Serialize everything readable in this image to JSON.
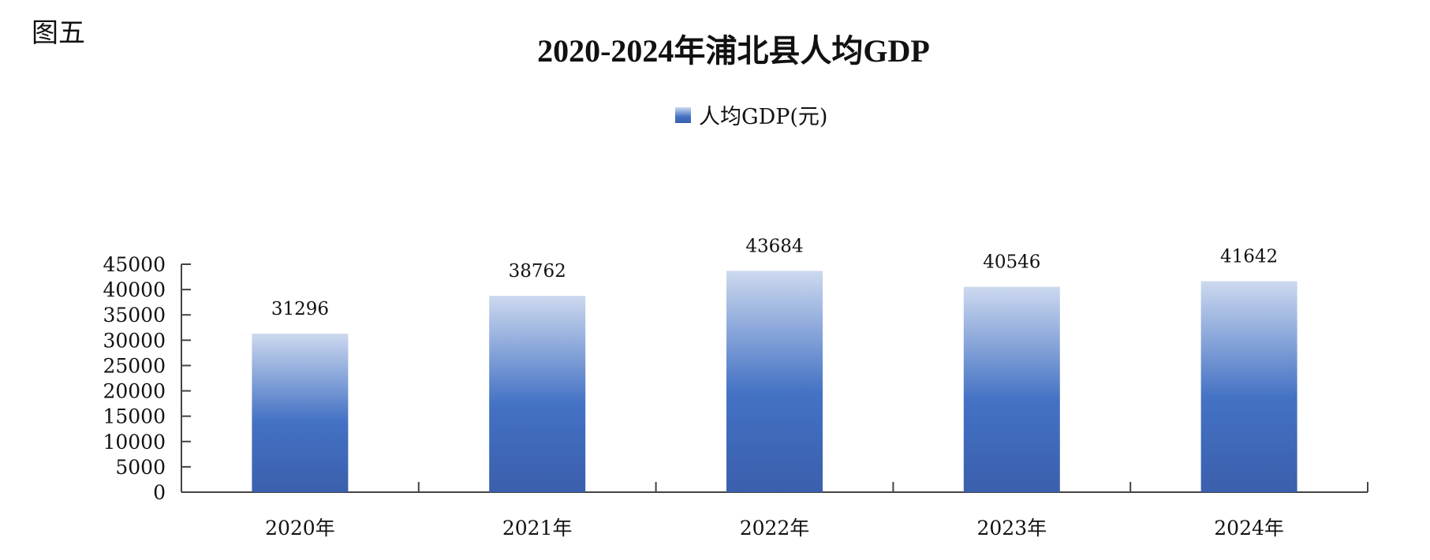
{
  "figure_label": "图五",
  "chart_data": {
    "type": "bar",
    "title": "2020-2024年浦北县人均GDP",
    "categories": [
      "2020年",
      "2021年",
      "2022年",
      "2023年",
      "2024年"
    ],
    "series": [
      {
        "name": "人均GDP(元)",
        "values": [
          31296,
          38762,
          43684,
          40546,
          41642
        ]
      }
    ],
    "xlabel": "",
    "ylabel": "",
    "ylim": [
      0,
      45000
    ],
    "yticks": [
      0,
      5000,
      10000,
      15000,
      20000,
      25000,
      30000,
      35000,
      40000,
      45000
    ],
    "grid": false,
    "legend": "top-center",
    "colors": {
      "bar_top": "#cdd9ef",
      "bar_mid": "#4472c4",
      "bar_bottom": "#3a5fad",
      "axis": "#444444"
    }
  }
}
